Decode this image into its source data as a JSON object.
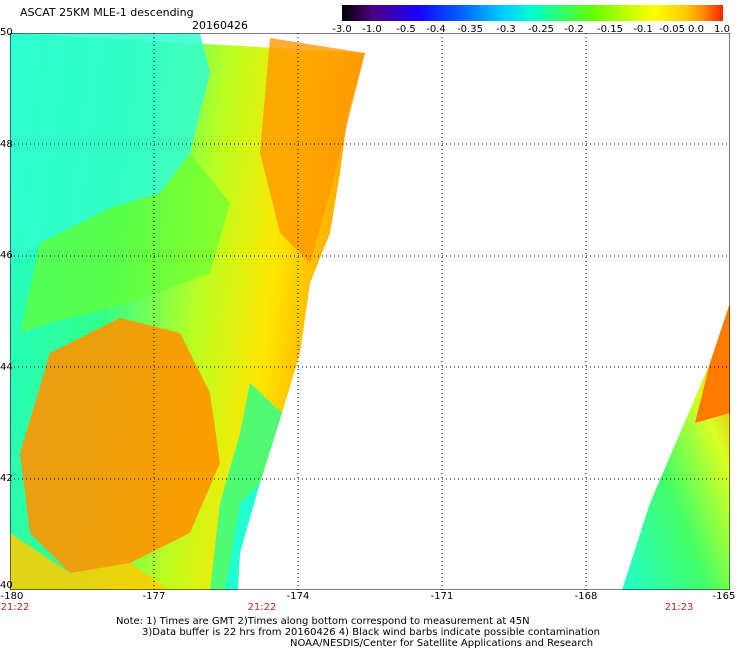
{
  "header": {
    "title": "ASCAT 25KM MLE-1 descending",
    "date": "20160426"
  },
  "colorbar": {
    "labels": [
      "-3.0",
      "-1.0",
      "-0.5",
      "-0.4",
      "-0.35",
      "-0.3",
      "-0.25",
      "-0.2",
      "-0.15",
      "-0.1",
      "-0.05",
      "0.0",
      "1.0"
    ],
    "colors": [
      "#000000",
      "#4a0080",
      "#1a00ff",
      "#0066ff",
      "#00ccff",
      "#00ffcc",
      "#33ff66",
      "#66ff00",
      "#ccff00",
      "#ffff00",
      "#ffcc00",
      "#ff8800",
      "#ff2200"
    ]
  },
  "map": {
    "lat_labels": [
      "50",
      "48",
      "46",
      "44",
      "42",
      "40"
    ],
    "lon_labels": [
      "-180",
      "-177",
      "-174",
      "-171",
      "-168",
      "-165"
    ],
    "time_labels": [
      "21:22",
      "21:22",
      "21:23"
    ]
  },
  "notes": [
    "Note: 1) Times are GMT 2)Times along bottom correspond to measurement at 45N",
    "3)Data buffer is 22 hrs from 20160426 4) Black wind barbs indicate possible contamination",
    "NOAA/NESDIS/Center for Satellite Applications and Research"
  ]
}
